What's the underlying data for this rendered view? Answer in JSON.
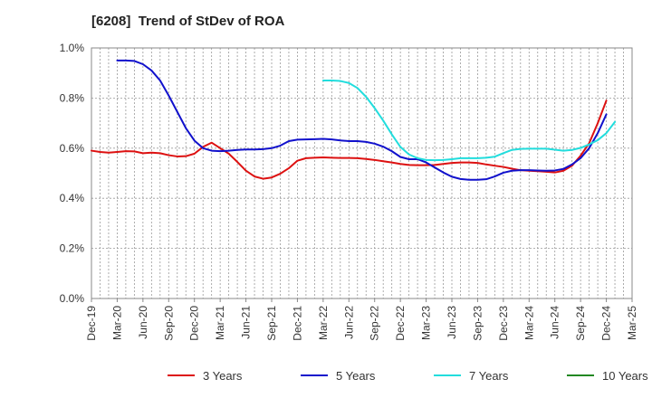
{
  "chart_data": {
    "type": "line",
    "title": "[6208]  Trend of StDev of ROA",
    "xlabel": "",
    "ylabel": "",
    "x_ticks": [
      "Dec-19",
      "Mar-20",
      "Jun-20",
      "Sep-20",
      "Dec-20",
      "Mar-21",
      "Jun-21",
      "Sep-21",
      "Dec-21",
      "Mar-22",
      "Jun-22",
      "Sep-22",
      "Dec-22",
      "Mar-23",
      "Jun-23",
      "Sep-23",
      "Dec-23",
      "Mar-24",
      "Jun-24",
      "Sep-24",
      "Dec-24",
      "Mar-25"
    ],
    "y_ticks": [
      0.0,
      0.2,
      0.4,
      0.6,
      0.8,
      1.0
    ],
    "y_tick_labels": [
      "0.0%",
      "0.2%",
      "0.4%",
      "0.6%",
      "0.8%",
      "1.0%"
    ],
    "ylim": [
      0,
      1.0
    ],
    "grid": true,
    "legend_position": "bottom",
    "series": [
      {
        "name": "3 Years",
        "color": "#dd1111",
        "start_index": 0,
        "values": [
          0.59,
          0.585,
          0.582,
          0.585,
          0.588,
          0.587,
          0.58,
          0.582,
          0.58,
          0.572,
          0.567,
          0.568,
          0.578,
          0.605,
          0.622,
          0.6,
          0.578,
          0.545,
          0.51,
          0.487,
          0.478,
          0.483,
          0.498,
          0.52,
          0.55,
          0.56,
          0.562,
          0.563,
          0.562,
          0.561,
          0.561,
          0.56,
          0.557,
          0.553,
          0.548,
          0.543,
          0.537,
          0.533,
          0.532,
          0.532,
          0.533,
          0.537,
          0.541,
          0.543,
          0.543,
          0.541,
          0.535,
          0.53,
          0.525,
          0.518,
          0.512,
          0.51,
          0.508,
          0.506,
          0.503,
          0.51,
          0.53,
          0.57,
          0.62,
          0.7,
          0.79
        ]
      },
      {
        "name": "5 Years",
        "color": "#1111cc",
        "start_index": 3,
        "values": [
          0.95,
          0.95,
          0.948,
          0.935,
          0.91,
          0.87,
          0.81,
          0.745,
          0.68,
          0.63,
          0.6,
          0.59,
          0.588,
          0.59,
          0.593,
          0.595,
          0.595,
          0.596,
          0.6,
          0.61,
          0.628,
          0.634,
          0.635,
          0.636,
          0.637,
          0.635,
          0.631,
          0.628,
          0.628,
          0.625,
          0.618,
          0.606,
          0.588,
          0.565,
          0.556,
          0.556,
          0.543,
          0.523,
          0.503,
          0.486,
          0.477,
          0.474,
          0.474,
          0.476,
          0.487,
          0.502,
          0.51,
          0.512,
          0.512,
          0.511,
          0.51,
          0.511,
          0.517,
          0.535,
          0.56,
          0.6,
          0.66,
          0.735
        ]
      },
      {
        "name": "7 Years",
        "color": "#22dddd",
        "start_index": 27,
        "values": [
          0.87,
          0.87,
          0.868,
          0.86,
          0.84,
          0.805,
          0.76,
          0.71,
          0.655,
          0.605,
          0.575,
          0.56,
          0.553,
          0.552,
          0.553,
          0.556,
          0.56,
          0.56,
          0.56,
          0.562,
          0.566,
          0.58,
          0.593,
          0.597,
          0.598,
          0.598,
          0.598,
          0.594,
          0.59,
          0.593,
          0.601,
          0.615,
          0.632,
          0.66,
          0.705
        ]
      },
      {
        "name": "10 Years",
        "color": "#228822",
        "start_index": 0,
        "values": []
      }
    ]
  }
}
